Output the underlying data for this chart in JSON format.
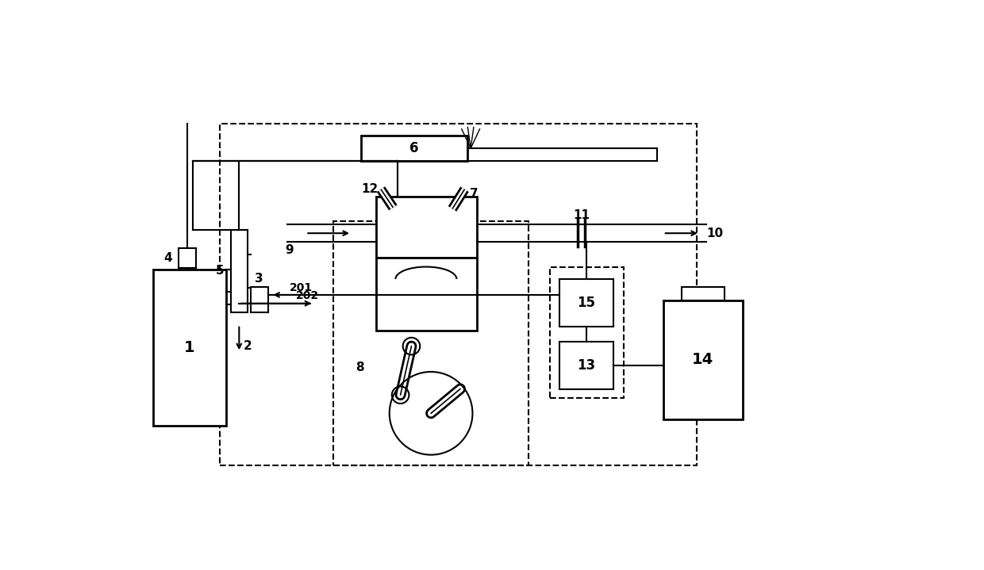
{
  "bg_color": "#ffffff",
  "fig_width": 12.4,
  "fig_height": 7.19
}
